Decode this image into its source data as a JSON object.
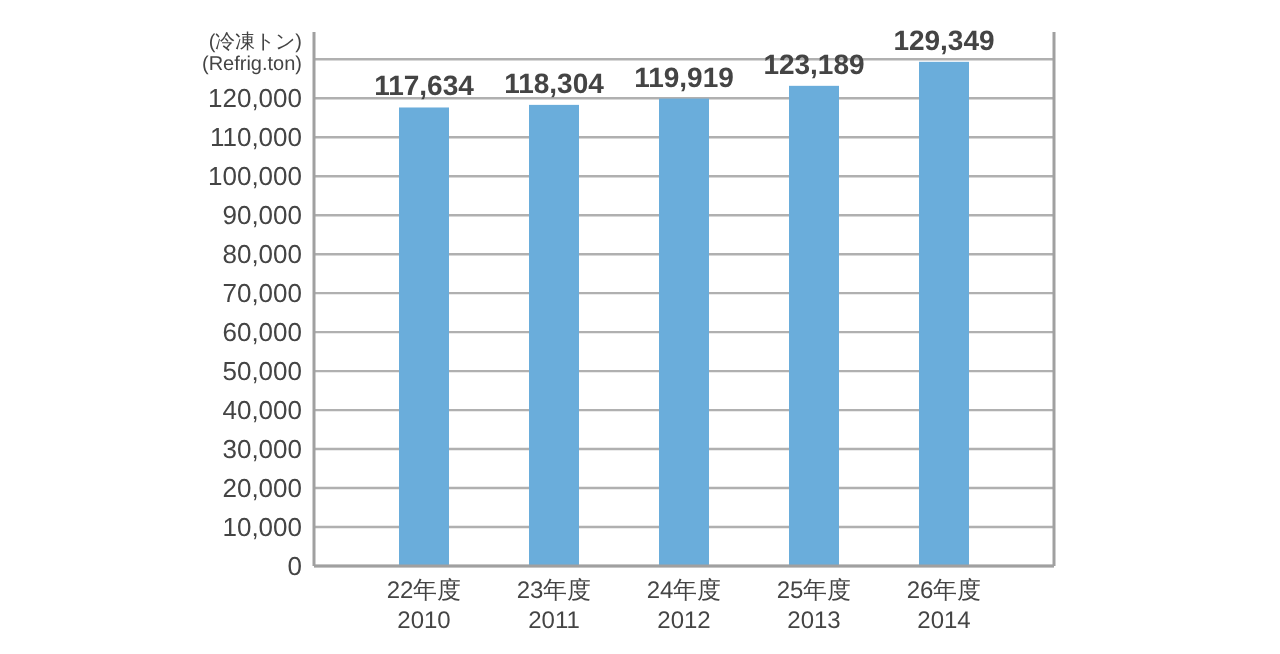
{
  "chart_data": {
    "type": "bar",
    "ylabel": "(冷凍トン)\n(Refrig.ton)",
    "categories": [
      "22年度\n2010",
      "23年度\n2011",
      "24年度\n2012",
      "25年度\n2013",
      "26年度\n2014"
    ],
    "values": [
      117634,
      118304,
      119919,
      123189,
      129349
    ],
    "value_labels": [
      "117,634",
      "118,304",
      "119,919",
      "123,189",
      "129,349"
    ],
    "color": "#6aaddb",
    "ylim": [
      0,
      137000
    ],
    "yticks": [
      {
        "value": 0,
        "label": "0"
      },
      {
        "value": 10000,
        "label": "10,000"
      },
      {
        "value": 20000,
        "label": "20,000"
      },
      {
        "value": 30000,
        "label": "30,000"
      },
      {
        "value": 40000,
        "label": "40,000"
      },
      {
        "value": 50000,
        "label": "50,000"
      },
      {
        "value": 60000,
        "label": "60,000"
      },
      {
        "value": 70000,
        "label": "70,000"
      },
      {
        "value": 80000,
        "label": "80,000"
      },
      {
        "value": 90000,
        "label": "90,000"
      },
      {
        "value": 100000,
        "label": "100,000"
      },
      {
        "value": 110000,
        "label": "110,000"
      },
      {
        "value": 120000,
        "label": "120,000"
      },
      {
        "value": 130000,
        "label": null
      }
    ],
    "grid": "y"
  }
}
